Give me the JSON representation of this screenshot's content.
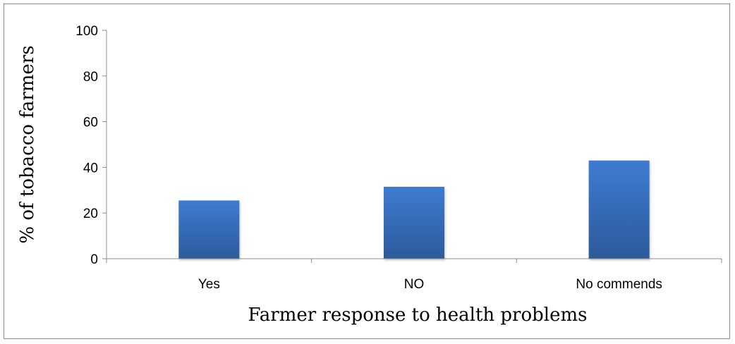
{
  "chart_data": {
    "type": "bar",
    "categories": [
      "Yes",
      "NO",
      "No commends"
    ],
    "values": [
      25.5,
      31.5,
      43.0
    ],
    "title": "",
    "xlabel": "Farmer response to health problems",
    "ylabel": "% of tobacco farmers",
    "ylim": [
      0,
      100
    ],
    "yticks": [
      0,
      20,
      40,
      60,
      80,
      100
    ],
    "grid": false,
    "legend": "none",
    "bar_color": "#3a74c4",
    "bar_color_dark": "#2c5a9a"
  }
}
